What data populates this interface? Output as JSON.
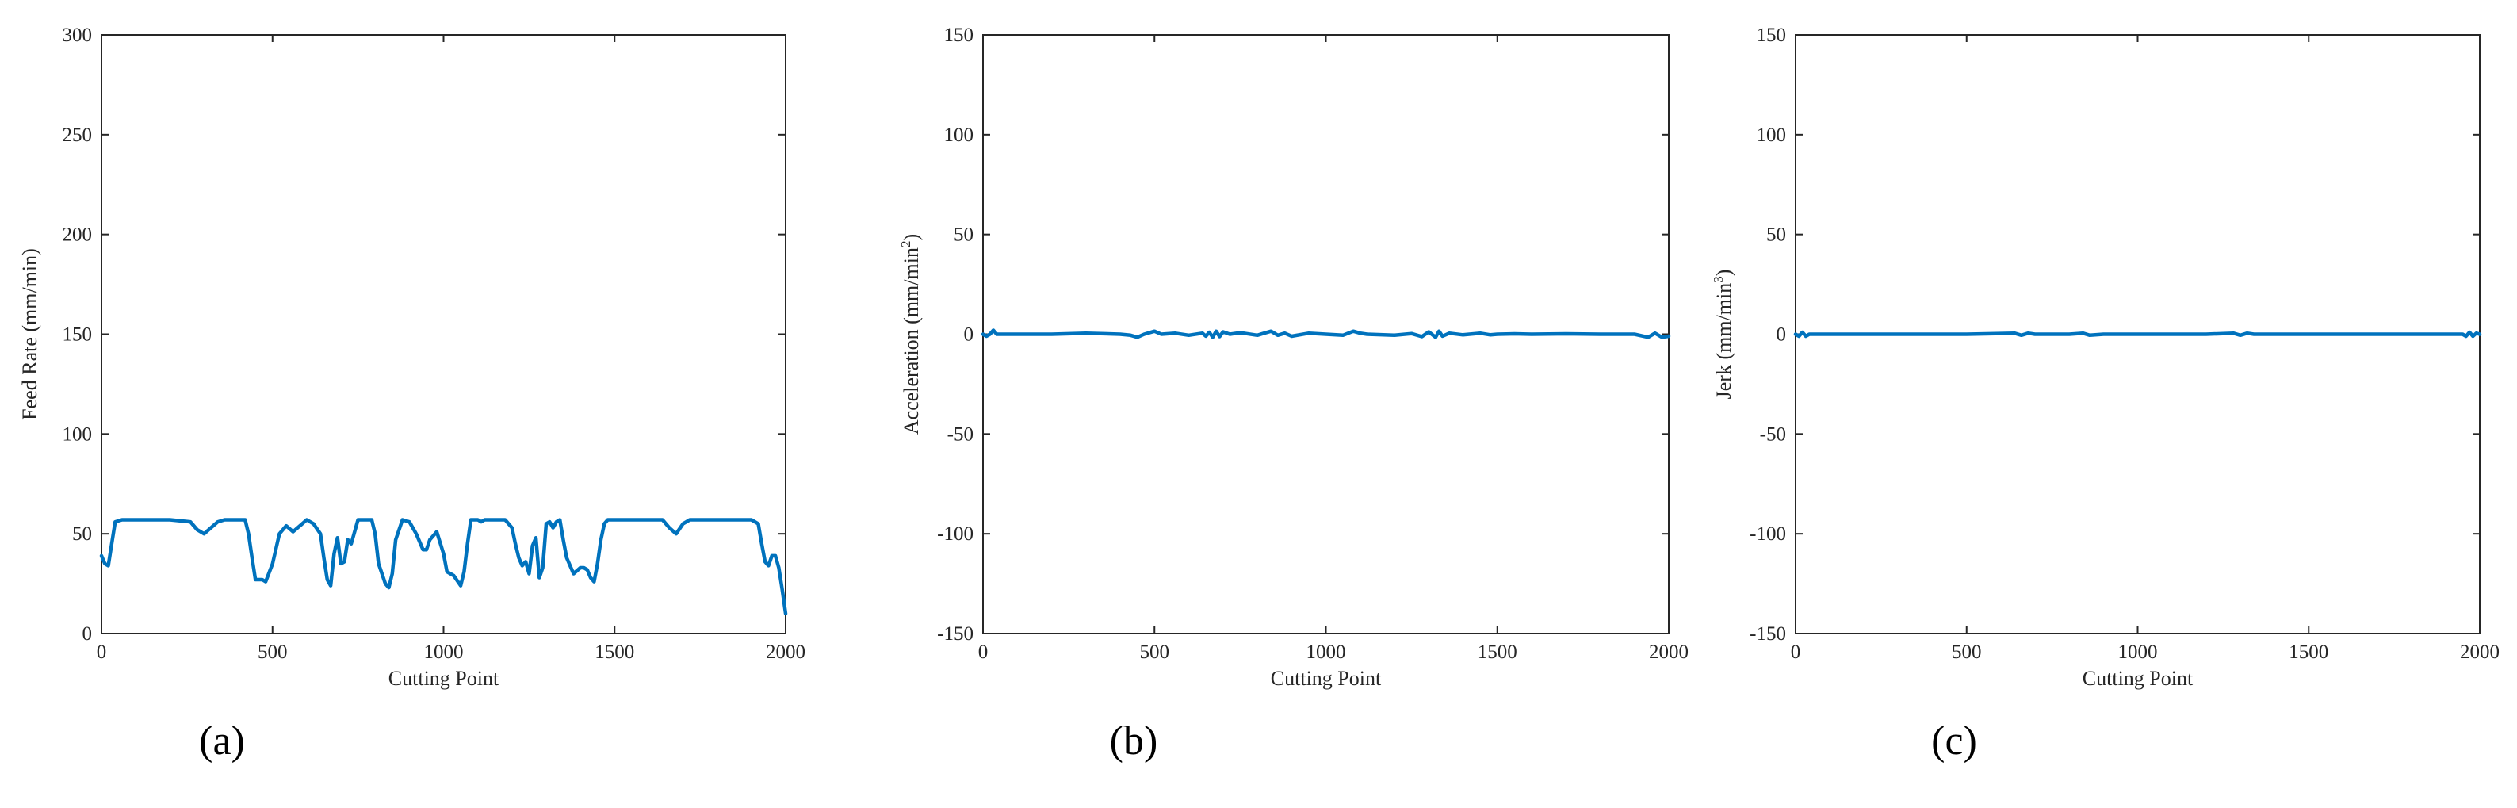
{
  "figure": {
    "captions": [
      "(a)",
      "(b)",
      "(c)"
    ]
  },
  "chart_data": [
    {
      "type": "line",
      "title": "",
      "xlabel": "Cutting Point",
      "ylabel": "Feed Rate (mm/min)",
      "xlim": [
        0,
        2000
      ],
      "ylim": [
        0,
        300
      ],
      "xticks": [
        "0",
        "500",
        "1000",
        "1500",
        "2000"
      ],
      "yticks": [
        "0",
        "50",
        "100",
        "150",
        "200",
        "250",
        "300"
      ],
      "grid": false,
      "color": "#0072BD",
      "series": [
        {
          "name": "Feed Rate",
          "x": [
            0,
            10,
            20,
            30,
            40,
            60,
            100,
            200,
            260,
            280,
            300,
            320,
            340,
            360,
            420,
            430,
            440,
            450,
            470,
            480,
            500,
            520,
            540,
            560,
            580,
            600,
            620,
            640,
            650,
            660,
            670,
            680,
            690,
            700,
            710,
            720,
            730,
            740,
            750,
            770,
            790,
            800,
            810,
            830,
            840,
            850,
            860,
            880,
            900,
            910,
            920,
            930,
            940,
            950,
            960,
            980,
            1000,
            1010,
            1020,
            1030,
            1050,
            1060,
            1070,
            1080,
            1090,
            1100,
            1110,
            1120,
            1130,
            1140,
            1180,
            1200,
            1210,
            1220,
            1230,
            1240,
            1250,
            1260,
            1270,
            1280,
            1290,
            1300,
            1310,
            1320,
            1330,
            1340,
            1350,
            1360,
            1380,
            1400,
            1410,
            1420,
            1430,
            1440,
            1450,
            1460,
            1470,
            1480,
            1500,
            1560,
            1600,
            1640,
            1660,
            1680,
            1700,
            1720,
            1750,
            1800,
            1850,
            1900,
            1920,
            1930,
            1940,
            1950,
            1960,
            1970,
            1980,
            1990,
            2000
          ],
          "values": [
            39,
            35,
            34,
            45,
            56,
            57,
            57,
            57,
            56,
            52,
            50,
            53,
            56,
            57,
            57,
            50,
            38,
            27,
            27,
            26,
            35,
            50,
            54,
            51,
            54,
            57,
            55,
            50,
            38,
            27,
            24,
            40,
            48,
            35,
            36,
            47,
            45,
            51,
            57,
            57,
            57,
            50,
            35,
            25,
            23,
            30,
            47,
            57,
            56,
            53,
            50,
            46,
            42,
            42,
            47,
            51,
            40,
            31,
            30,
            29,
            24,
            31,
            45,
            57,
            57,
            57,
            56,
            57,
            57,
            57,
            57,
            53,
            45,
            38,
            34,
            36,
            30,
            44,
            48,
            28,
            33,
            55,
            56,
            53,
            56,
            57,
            47,
            38,
            30,
            33,
            33,
            32,
            28,
            26,
            35,
            47,
            55,
            57,
            57,
            57,
            57,
            57,
            53,
            50,
            55,
            57,
            57,
            57,
            57,
            57,
            55,
            45,
            36,
            34,
            39,
            39,
            33,
            22,
            10
          ]
        }
      ]
    },
    {
      "type": "line",
      "title": "",
      "xlabel": "Cutting Point",
      "ylabel": "Acceleration (mm/min",
      "ylabel_sup": "2",
      "ylabel_end": ")",
      "xlim": [
        0,
        2000
      ],
      "ylim": [
        -150,
        150
      ],
      "xticks": [
        "0",
        "500",
        "1000",
        "1500",
        "2000"
      ],
      "yticks": [
        "-150",
        "-100",
        "-50",
        "0",
        "50",
        "100",
        "150"
      ],
      "grid": false,
      "color": "#0072BD",
      "series": [
        {
          "name": "Acceleration",
          "x": [
            0,
            10,
            20,
            30,
            40,
            60,
            100,
            200,
            300,
            400,
            430,
            450,
            470,
            500,
            520,
            560,
            600,
            640,
            650,
            660,
            670,
            680,
            690,
            700,
            720,
            740,
            760,
            800,
            820,
            840,
            860,
            880,
            900,
            950,
            1000,
            1050,
            1080,
            1100,
            1120,
            1200,
            1250,
            1280,
            1300,
            1320,
            1330,
            1340,
            1360,
            1400,
            1450,
            1480,
            1500,
            1550,
            1600,
            1700,
            1800,
            1900,
            1940,
            1960,
            1980,
            2000
          ],
          "values": [
            0,
            -1,
            0,
            2,
            0,
            0,
            0,
            0,
            0.5,
            0,
            -0.5,
            -1.5,
            0,
            1.5,
            0,
            0.5,
            -0.5,
            0.5,
            -1,
            1,
            -1.5,
            1.5,
            -1.2,
            1.2,
            0,
            0.5,
            0.5,
            -0.5,
            0.5,
            1.5,
            -0.5,
            0.5,
            -1,
            0.5,
            0,
            -0.5,
            1.5,
            0.5,
            0,
            -0.5,
            0.3,
            -1.2,
            1.2,
            -1.5,
            1.5,
            -1,
            0.5,
            -0.3,
            0.5,
            -0.3,
            0,
            0.2,
            0,
            0.2,
            0,
            0,
            -1.5,
            0.5,
            -1.5,
            -1
          ]
        }
      ]
    },
    {
      "type": "line",
      "title": "",
      "xlabel": "Cutting Point",
      "ylabel": "Jerk (mm/min",
      "ylabel_sup": "3",
      "ylabel_end": ")",
      "xlim": [
        0,
        2000
      ],
      "ylim": [
        -150,
        150
      ],
      "xticks": [
        "0",
        "500",
        "1000",
        "1500",
        "2000"
      ],
      "yticks": [
        "-150",
        "-100",
        "-50",
        "0",
        "50",
        "100",
        "150"
      ],
      "grid": false,
      "color": "#0072BD",
      "series": [
        {
          "name": "Jerk",
          "x": [
            0,
            10,
            20,
            30,
            40,
            60,
            100,
            300,
            500,
            640,
            660,
            680,
            700,
            800,
            840,
            860,
            900,
            1000,
            1100,
            1200,
            1280,
            1300,
            1320,
            1340,
            1400,
            1500,
            1600,
            1800,
            1950,
            1960,
            1970,
            1980,
            1990,
            2000
          ],
          "values": [
            0,
            -1,
            1,
            -1,
            0,
            0,
            0,
            0,
            0,
            0.5,
            -0.5,
            0.5,
            0,
            0,
            0.5,
            -0.5,
            0,
            0,
            0,
            0,
            0.5,
            -0.5,
            0.5,
            0,
            0,
            0,
            0,
            0,
            0,
            -1,
            1,
            -1,
            0.5,
            0
          ]
        }
      ]
    }
  ]
}
